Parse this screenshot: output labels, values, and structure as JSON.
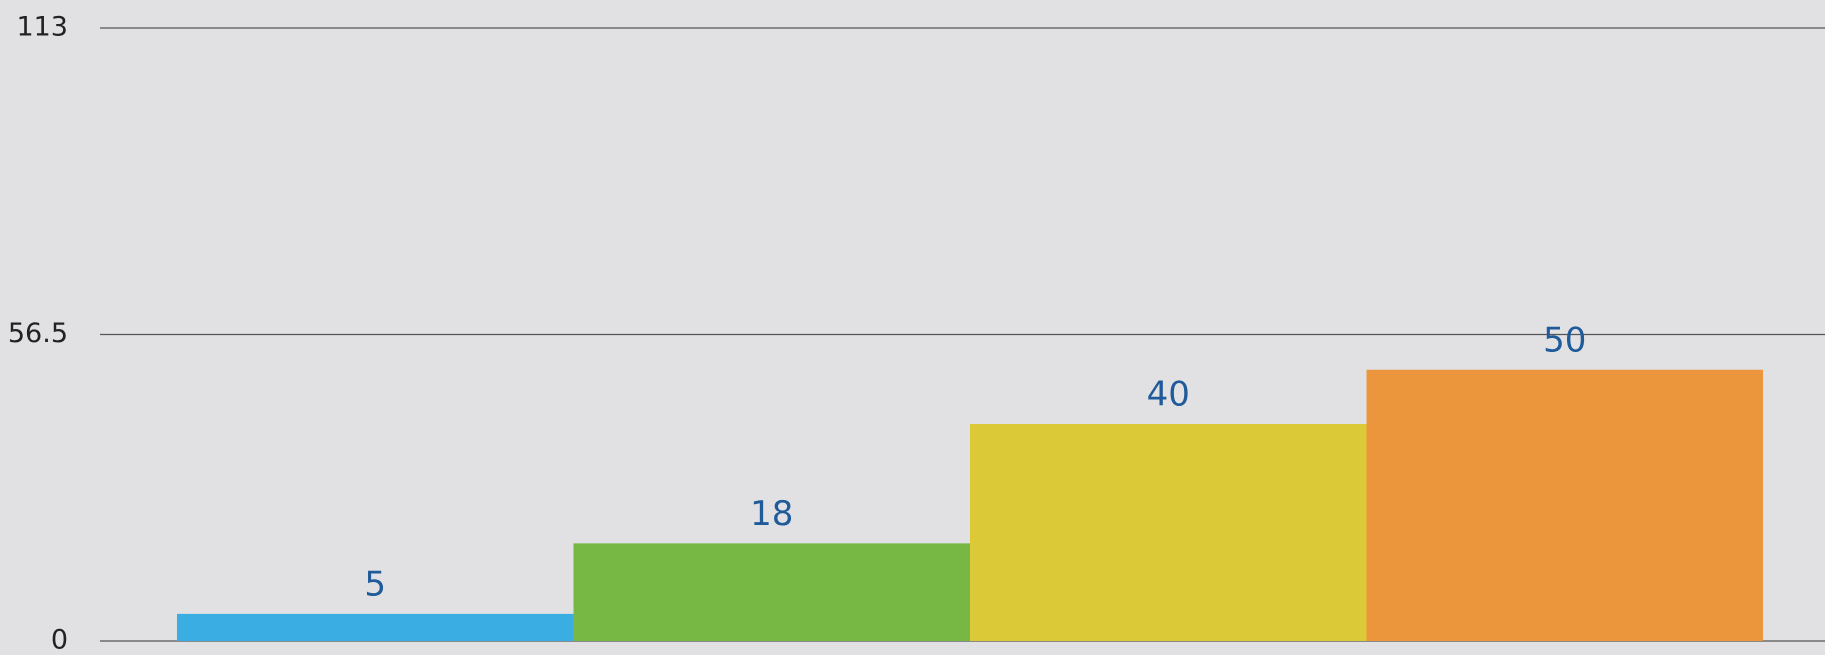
{
  "chart_data": {
    "type": "bar",
    "categories": [
      null,
      null,
      null,
      null
    ],
    "values": [
      5,
      18,
      40,
      50
    ],
    "colors": [
      "#3aaee3",
      "#76b843",
      "#dcc937",
      "#eb963c"
    ],
    "label_color": "#1f5a9a",
    "ylim": [
      0,
      113
    ],
    "yticks": [
      0,
      56.5,
      113
    ],
    "grid": true
  }
}
